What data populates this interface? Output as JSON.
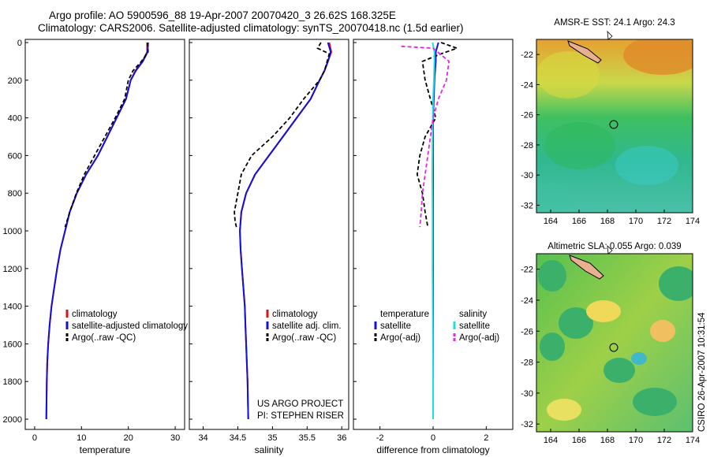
{
  "header": {
    "title_line1": "Argo profile: AO 5900596_88 19-Apr-2007 20070420_3 26.62S 168.325E",
    "title_line2": "Climatology: CARS2006. Satellite-adjusted climatology: synTS_20070418.nc (1.5d earlier)"
  },
  "stamp": "CSIRO 26-Apr-2007 10:31:54",
  "colors": {
    "climatology": "#dd1111",
    "satellite": "#1111dd",
    "argo": "#000000",
    "satellite_diff": "#22dddd",
    "argo_sal_diff": "#ee22ee"
  },
  "chart_data": [
    {
      "type": "line",
      "xlabel": "temperature",
      "ylabel": "",
      "xlim": [
        -2,
        32
      ],
      "ylim": [
        2050,
        0
      ],
      "xticks": [
        0,
        10,
        20,
        30
      ],
      "yticks": [
        0,
        200,
        400,
        600,
        800,
        1000,
        1200,
        1400,
        1600,
        1800,
        2000
      ],
      "legend_location": "lower-right",
      "legend": [
        "climatology",
        "satellite-adjusted climatology",
        "Argo(..raw -QC)"
      ],
      "series": [
        {
          "name": "climatology",
          "color": "#dd1111",
          "dash": "none",
          "x": [
            24.0,
            24.0,
            23.0,
            21.5,
            20.5,
            19.5,
            17.5,
            15.5,
            13.5,
            11.0,
            9.0,
            7.5,
            6.5,
            5.5,
            4.8,
            4.2,
            3.6,
            3.2,
            2.9,
            2.7,
            2.6,
            2.5
          ],
          "y": [
            0,
            50,
            100,
            150,
            200,
            300,
            400,
            500,
            600,
            700,
            800,
            900,
            1000,
            1100,
            1200,
            1300,
            1400,
            1500,
            1600,
            1700,
            1800,
            2000
          ]
        },
        {
          "name": "satellite-adjusted climatology",
          "color": "#1111dd",
          "dash": "none",
          "x": [
            24.2,
            24.1,
            23.1,
            21.6,
            20.5,
            19.5,
            17.5,
            15.5,
            13.5,
            11.0,
            9.0,
            7.5,
            6.5,
            5.5,
            4.8,
            4.2,
            3.6,
            3.2,
            2.9,
            2.7,
            2.6,
            2.5
          ],
          "y": [
            0,
            50,
            100,
            150,
            200,
            300,
            400,
            500,
            600,
            700,
            800,
            900,
            1000,
            1100,
            1200,
            1300,
            1400,
            1500,
            1600,
            1700,
            1800,
            2000
          ]
        },
        {
          "name": "Argo(..raw -QC)",
          "color": "#000000",
          "dash": "5,3",
          "x": [
            24.1,
            24.2,
            22.8,
            21.0,
            20.0,
            19.2,
            17.2,
            15.0,
            12.8,
            10.6,
            8.9,
            7.5,
            6.5
          ],
          "y": [
            0,
            50,
            100,
            150,
            200,
            300,
            400,
            500,
            600,
            700,
            800,
            900,
            980
          ]
        }
      ]
    },
    {
      "type": "line",
      "xlabel": "salinity",
      "xlim": [
        33.8,
        36.1
      ],
      "ylim": [
        2050,
        0
      ],
      "xticks": [
        34,
        34.5,
        35,
        35.5,
        36
      ],
      "legend_location": "lower-right",
      "legend": [
        "climatology",
        "satellite adj. clim.",
        "Argo(..raw -QC)"
      ],
      "annotation": [
        "US ARGO PROJECT",
        "PI: STEPHEN RISER"
      ],
      "series": [
        {
          "name": "climatology",
          "color": "#dd1111",
          "dash": "none",
          "x": [
            35.82,
            35.85,
            35.8,
            35.75,
            35.68,
            35.55,
            35.35,
            35.15,
            34.95,
            34.75,
            34.62,
            34.55,
            34.53,
            34.54,
            34.56,
            34.58,
            34.6,
            34.61,
            34.62,
            34.63,
            34.64,
            34.65
          ],
          "y": [
            0,
            50,
            100,
            150,
            200,
            300,
            400,
            500,
            600,
            700,
            800,
            900,
            1000,
            1100,
            1200,
            1300,
            1400,
            1500,
            1600,
            1700,
            1800,
            2000
          ]
        },
        {
          "name": "satellite adj. clim.",
          "color": "#1111dd",
          "dash": "none",
          "x": [
            35.8,
            35.84,
            35.8,
            35.75,
            35.68,
            35.55,
            35.35,
            35.15,
            34.95,
            34.75,
            34.62,
            34.55,
            34.53,
            34.54,
            34.56,
            34.58,
            34.6,
            34.61,
            34.62,
            34.63,
            34.64,
            34.65
          ],
          "y": [
            0,
            50,
            100,
            150,
            200,
            300,
            400,
            500,
            600,
            700,
            800,
            900,
            1000,
            1100,
            1200,
            1300,
            1400,
            1500,
            1600,
            1700,
            1800,
            2000
          ]
        },
        {
          "name": "Argo(..raw -QC)",
          "color": "#000000",
          "dash": "5,3",
          "x": [
            35.7,
            35.65,
            35.82,
            35.75,
            35.68,
            35.45,
            35.25,
            35.0,
            34.7,
            34.55,
            34.5,
            34.45,
            34.46,
            34.48
          ],
          "y": [
            0,
            30,
            60,
            150,
            200,
            300,
            400,
            500,
            600,
            700,
            800,
            900,
            950,
            980
          ]
        }
      ]
    },
    {
      "type": "line",
      "xlabel": "difference from climatology",
      "xlim": [
        -3,
        3
      ],
      "ylim": [
        2050,
        0
      ],
      "xticks": [
        -2,
        0,
        2
      ],
      "legend_location": "lower-right",
      "legend_groups": [
        {
          "heading": "temperature",
          "items": [
            "satellite",
            "Argo(-adj)"
          ]
        },
        {
          "heading": "salinity",
          "items": [
            "satellite",
            "Argo(-adj)"
          ]
        }
      ],
      "series": [
        {
          "name": "temperature satellite",
          "color": "#1111dd",
          "dash": "none",
          "x": [
            0.2,
            0.1,
            0.1,
            0.05,
            0.0,
            0.0,
            0.0,
            0.0,
            0.0,
            0.0,
            0.0
          ],
          "y": [
            0,
            50,
            100,
            200,
            400,
            600,
            800,
            1000,
            1500,
            1800,
            2000
          ]
        },
        {
          "name": "temperature Argo(-adj)",
          "color": "#000000",
          "dash": "5,3",
          "x": [
            0.3,
            0.9,
            0.3,
            -0.4,
            -0.3,
            -0.1,
            0.1,
            -0.3,
            -0.5,
            -0.6,
            -0.4,
            -0.3,
            -0.2
          ],
          "y": [
            0,
            30,
            60,
            100,
            200,
            300,
            400,
            500,
            600,
            700,
            800,
            900,
            980
          ]
        },
        {
          "name": "salinity satellite",
          "color": "#22dddd",
          "dash": "none",
          "x": [
            -0.02,
            0.05,
            0.05,
            0.03,
            0.0,
            -0.02,
            -0.03,
            -0.02,
            -0.02,
            -0.01,
            0.0,
            0.0
          ],
          "y": [
            0,
            50,
            100,
            200,
            300,
            500,
            700,
            900,
            1200,
            1500,
            1800,
            2000
          ]
        },
        {
          "name": "salinity Argo(-adj)",
          "color": "#ee22ee",
          "dash": "5,3",
          "x": [
            -1.2,
            0.0,
            0.6,
            0.5,
            0.2,
            0.0,
            -0.1,
            -0.2,
            -0.3,
            -0.4,
            -0.45,
            -0.5
          ],
          "y": [
            20,
            30,
            100,
            200,
            300,
            400,
            500,
            600,
            700,
            800,
            900,
            980
          ]
        }
      ]
    },
    {
      "type": "heatmap",
      "title": "AMSR-E SST: 24.1 Argo: 24.3",
      "xlim": [
        163,
        174
      ],
      "ylim": [
        -32.5,
        -21
      ],
      "xticks": [
        164,
        166,
        168,
        170,
        172,
        174
      ],
      "yticks": [
        -22,
        -24,
        -26,
        -28,
        -30,
        -32
      ],
      "marker": {
        "lon": 168.325,
        "lat": -26.62
      }
    },
    {
      "type": "heatmap",
      "title": "Altimetric SLA: 0.055 Argo: 0.039",
      "xlim": [
        163,
        174
      ],
      "ylim": [
        -32.5,
        -21
      ],
      "xticks": [
        164,
        166,
        168,
        170,
        172,
        174
      ],
      "yticks": [
        -22,
        -24,
        -26,
        -28,
        -30,
        -32
      ],
      "marker": {
        "lon": 168.325,
        "lat": -26.62
      }
    }
  ]
}
